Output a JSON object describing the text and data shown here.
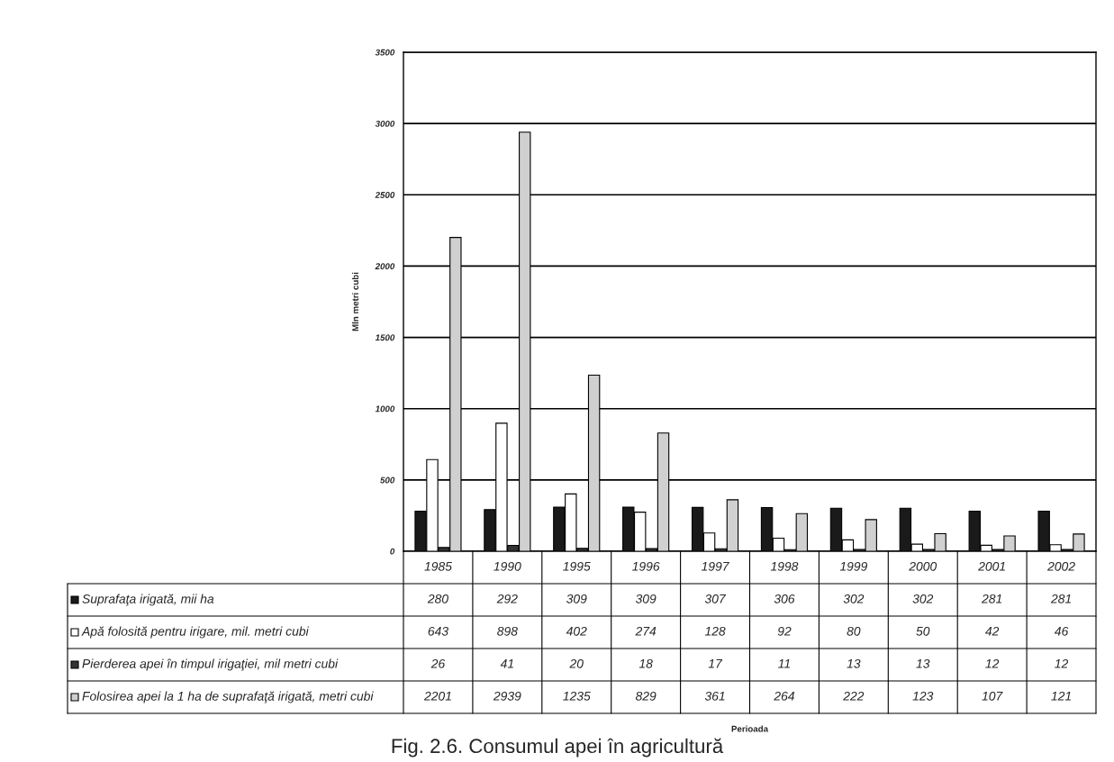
{
  "chart_data": {
    "type": "bar",
    "title": "Fig. 2.6. Consumul apei în agricultură",
    "annotations": [
      "Perioada"
    ],
    "ylabel": "Mln metri cubi",
    "categories": [
      "1985",
      "1990",
      "1995",
      "1996",
      "1997",
      "1998",
      "1999",
      "2000",
      "2001",
      "2002"
    ],
    "series": [
      {
        "name": "Suprafaţa irigată, mii ha",
        "color": "#1a1a1a",
        "values": [
          280,
          292,
          309,
          309,
          307,
          306,
          302,
          302,
          281,
          281
        ]
      },
      {
        "name": "Apă folosită pentru irigare, mil. metri cubi",
        "color": "#ffffff",
        "values": [
          643,
          898,
          402,
          274,
          128,
          92,
          80,
          50,
          42,
          46
        ]
      },
      {
        "name": "Pierderea apei în timpul irigaţiei, mil metri cubi",
        "color": "#333333",
        "values": [
          26,
          41,
          20,
          18,
          17,
          11,
          13,
          13,
          12,
          12
        ]
      },
      {
        "name": "Folosirea apei la 1 ha de suprafaţă irigată, metri cubi",
        "color": "#d0d0d0",
        "values": [
          2201,
          2939,
          1235,
          829,
          361,
          264,
          222,
          123,
          107,
          121
        ]
      }
    ],
    "ylim": [
      0,
      3500
    ],
    "yticks": [
      0,
      500,
      1000,
      1500,
      2000,
      2500,
      3000,
      3500
    ],
    "grid": "y",
    "legend": "bottom left",
    "data_labels": true
  }
}
